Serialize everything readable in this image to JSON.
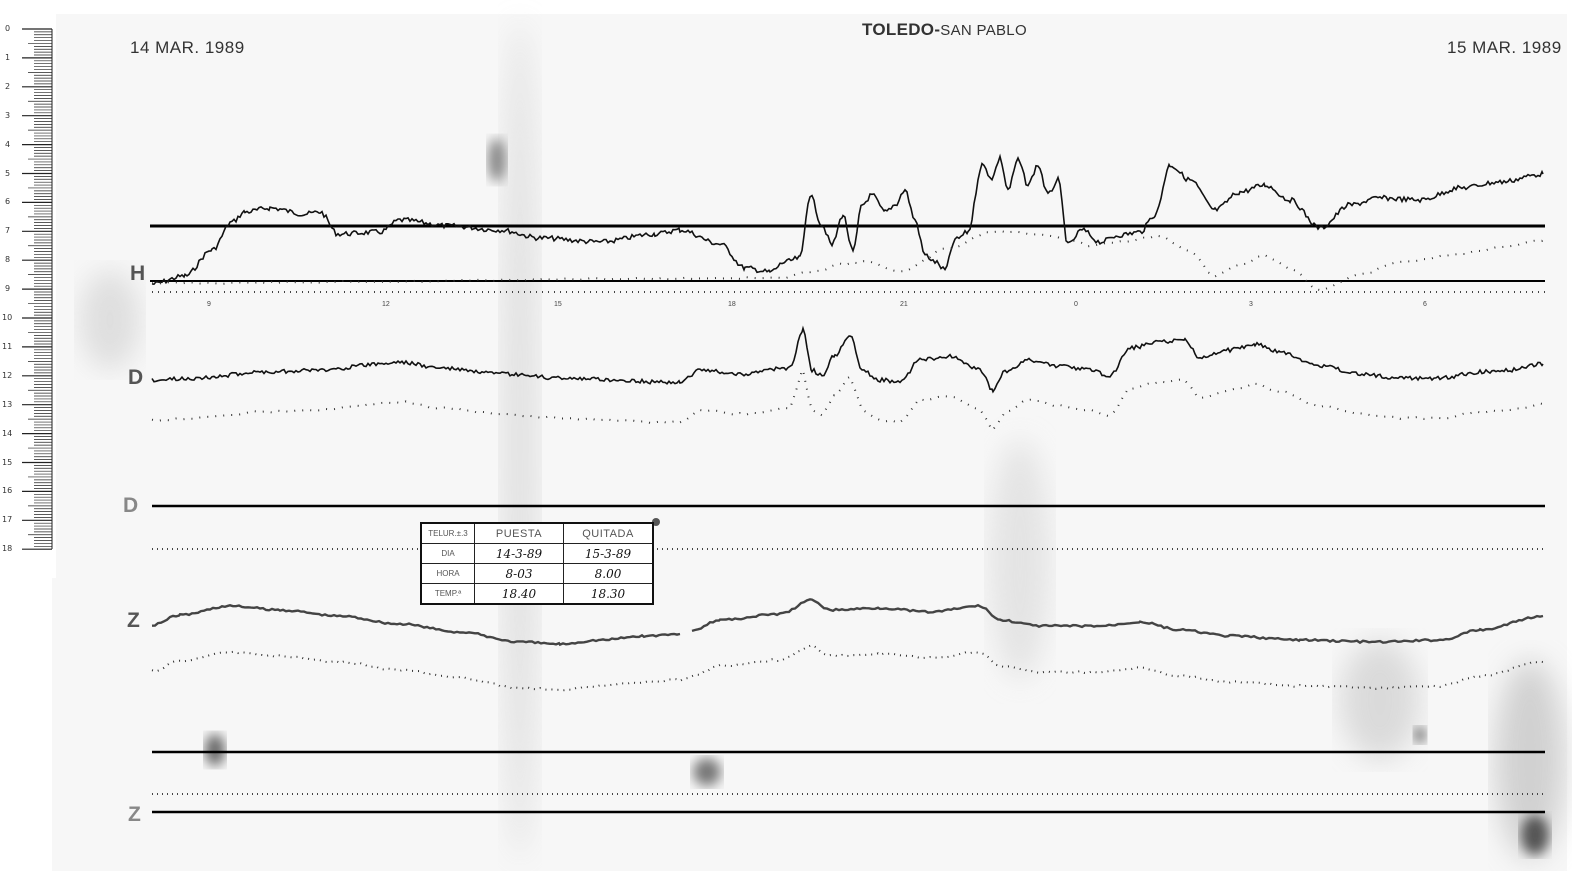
{
  "header": {
    "date_left": "14 MAR. 1989",
    "date_right": "15 MAR. 1989",
    "station_main": "TOLEDO-",
    "station_sub": "SAN PABLO"
  },
  "ruler": {
    "labels": [
      "0",
      "1",
      "2",
      "3",
      "4",
      "5",
      "6",
      "7",
      "8",
      "9",
      "10",
      "11",
      "12",
      "13",
      "14",
      "15",
      "16",
      "17",
      "18"
    ]
  },
  "traces": {
    "h_label": "H",
    "d_label": "D",
    "d2_label": "D",
    "z_label": "Z",
    "z2_label": "Z"
  },
  "hour_marks": [
    "9",
    "12",
    "15",
    "18",
    "21",
    "0",
    "3",
    "6"
  ],
  "card": {
    "corner": "TELUR.±.3",
    "col_puesta": "PUESTA",
    "col_quitada": "QUITADA",
    "row_dia": "DIA",
    "row_hora": "HORA",
    "row_temp": "TEMP.ª",
    "dia_puesta": "14-3-89",
    "dia_quitada": "15-3-89",
    "hora_puesta": "8-03",
    "hora_quitada": "8.00",
    "temp_puesta": "18.40",
    "temp_quitada": "18.30"
  },
  "colors": {
    "ink": "#111111",
    "dots": "#333333",
    "label_gray": "#555555"
  }
}
